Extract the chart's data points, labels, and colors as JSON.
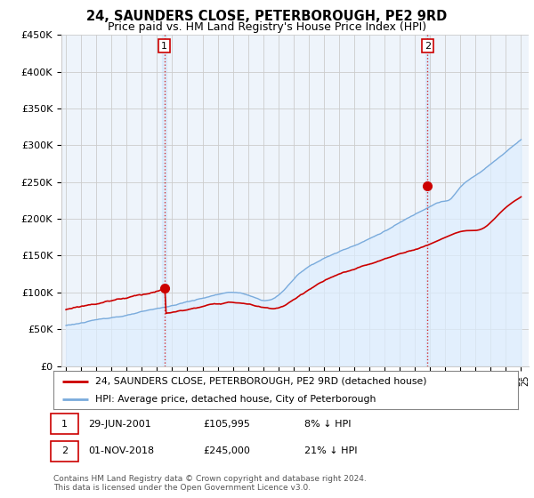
{
  "title": "24, SAUNDERS CLOSE, PETERBOROUGH, PE2 9RD",
  "subtitle": "Price paid vs. HM Land Registry's House Price Index (HPI)",
  "title_fontsize": 10.5,
  "subtitle_fontsize": 9,
  "ylim": [
    0,
    450000
  ],
  "yticks": [
    0,
    50000,
    100000,
    150000,
    200000,
    250000,
    300000,
    350000,
    400000,
    450000
  ],
  "ytick_labels": [
    "£0",
    "£50K",
    "£100K",
    "£150K",
    "£200K",
    "£250K",
    "£300K",
    "£350K",
    "£400K",
    "£450K"
  ],
  "xlim_start": 1994.7,
  "xlim_end": 2025.5,
  "xtick_years": [
    1995,
    1996,
    1997,
    1998,
    1999,
    2000,
    2001,
    2002,
    2003,
    2004,
    2005,
    2006,
    2007,
    2008,
    2009,
    2010,
    2011,
    2012,
    2013,
    2014,
    2015,
    2016,
    2017,
    2018,
    2019,
    2020,
    2021,
    2022,
    2023,
    2024,
    2025
  ],
  "sale1_x": 2001.49,
  "sale1_y": 105995,
  "sale2_x": 2018.83,
  "sale2_y": 245000,
  "sale1_date": "29-JUN-2001",
  "sale1_price": "£105,995",
  "sale1_hpi": "8% ↓ HPI",
  "sale2_date": "01-NOV-2018",
  "sale2_price": "£245,000",
  "sale2_hpi": "21% ↓ HPI",
  "hpi_line_color": "#7aabdc",
  "hpi_fill_color": "#ddeeff",
  "price_line_color": "#cc0000",
  "vline_color": "#cc0000",
  "marker_color": "#cc0000",
  "legend_line1": "24, SAUNDERS CLOSE, PETERBOROUGH, PE2 9RD (detached house)",
  "legend_line2": "HPI: Average price, detached house, City of Peterborough",
  "footnote": "Contains HM Land Registry data © Crown copyright and database right 2024.\nThis data is licensed under the Open Government Licence v3.0.",
  "background_color": "#ffffff",
  "grid_color": "#cccccc",
  "chart_bg_color": "#eef4fb"
}
